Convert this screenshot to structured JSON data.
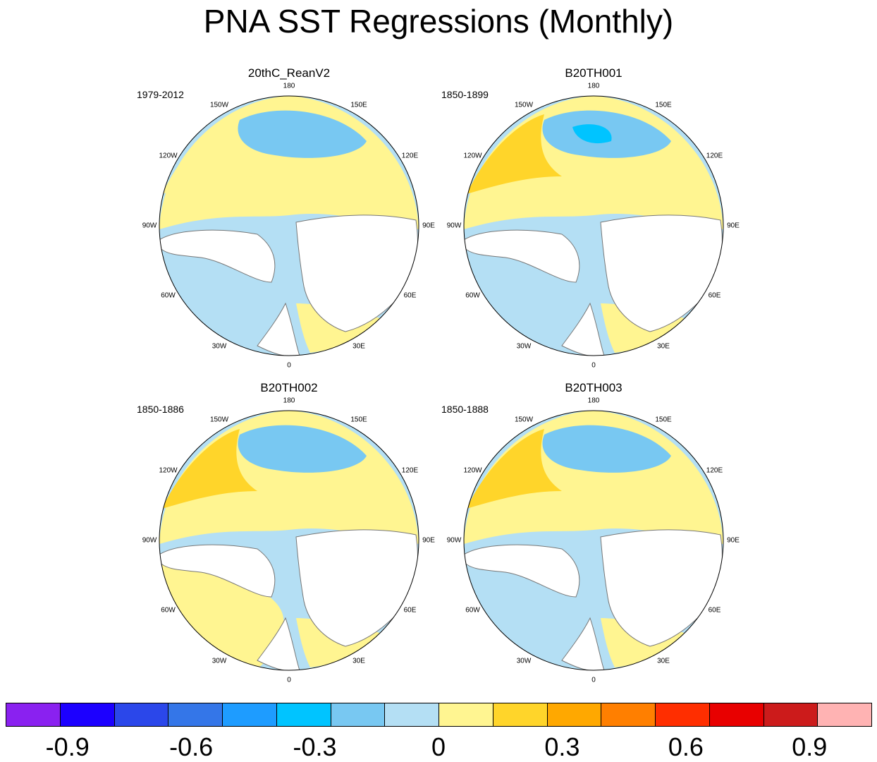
{
  "chart_data": {
    "type": "heatmap",
    "title": "PNA SST Regressions (Monthly)",
    "projection": "north polar stereographic",
    "longitude_labels": [
      "180",
      "150E",
      "120E",
      "90E",
      "60E",
      "30E",
      "0",
      "30W",
      "60W",
      "90W",
      "120W",
      "150W"
    ],
    "panels": [
      {
        "title": "20thC_ReanV2",
        "period": "1979-2012"
      },
      {
        "title": "B20TH001",
        "period": "1850-1899"
      },
      {
        "title": "B20TH002",
        "period": "1850-1886"
      },
      {
        "title": "B20TH003",
        "period": "1850-1888"
      }
    ],
    "colorbar": {
      "colors": [
        "#8a21f0",
        "#1c00ff",
        "#2b47ea",
        "#3476e8",
        "#1e9cff",
        "#00c4ff",
        "#78c8f2",
        "#b4dff4",
        "#fff591",
        "#ffd52a",
        "#ffa800",
        "#ff7f00",
        "#ff2e00",
        "#e80000",
        "#cc1b1b",
        "#ffb3b3"
      ],
      "tick_labels": [
        "-0.9",
        "-0.6",
        "-0.3",
        "0",
        "0.3",
        "0.6",
        "0.9"
      ],
      "tick_values": [
        -0.9,
        -0.6,
        -0.3,
        0,
        0.3,
        0.6,
        0.9
      ],
      "range": [
        -1.05,
        1.05
      ]
    }
  }
}
